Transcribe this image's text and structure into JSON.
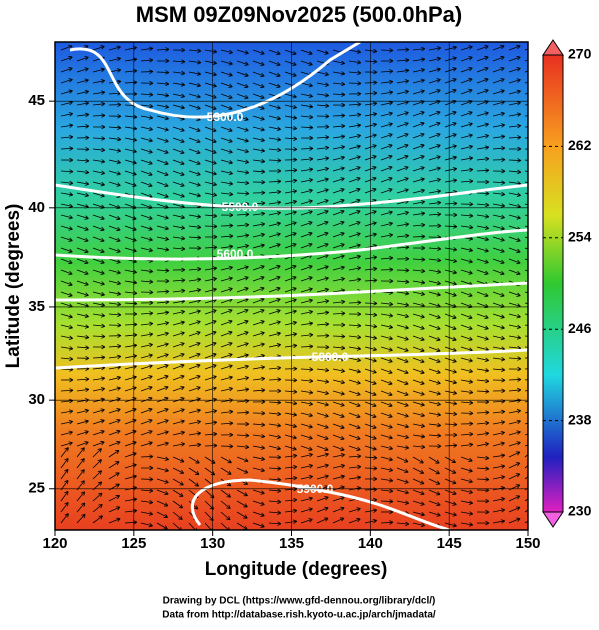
{
  "title": "MSM 09Z09Nov2025 (500.0hPa)",
  "map": {
    "xlabel": "Longitude (degrees)",
    "ylabel": "Latitude  (degrees)",
    "xlim": [
      120,
      150
    ],
    "ylim": [
      22.6,
      47.6
    ],
    "xticks": [
      120,
      125,
      130,
      135,
      140,
      145,
      150
    ],
    "yticks": [
      25,
      30,
      35,
      40,
      45
    ],
    "contour_labels": [
      {
        "value": 5300,
        "label": "5300.0"
      },
      {
        "value": 5500,
        "label": "5500.0"
      },
      {
        "value": 5600,
        "label": "5600.0"
      },
      {
        "value": 5800,
        "label": "5800.0"
      },
      {
        "value": 5900,
        "label": "5900.0"
      }
    ]
  },
  "colorbar": {
    "lim": [
      230,
      270
    ],
    "ticks": [
      230,
      238,
      246,
      254,
      262,
      270
    ]
  },
  "credits": [
    "Drawing by DCL (https://www.gfd-dennou.org/library/dcl/)",
    "Data from http://database.rish.kyoto-u.ac.jp/arch/jmadata/"
  ]
}
